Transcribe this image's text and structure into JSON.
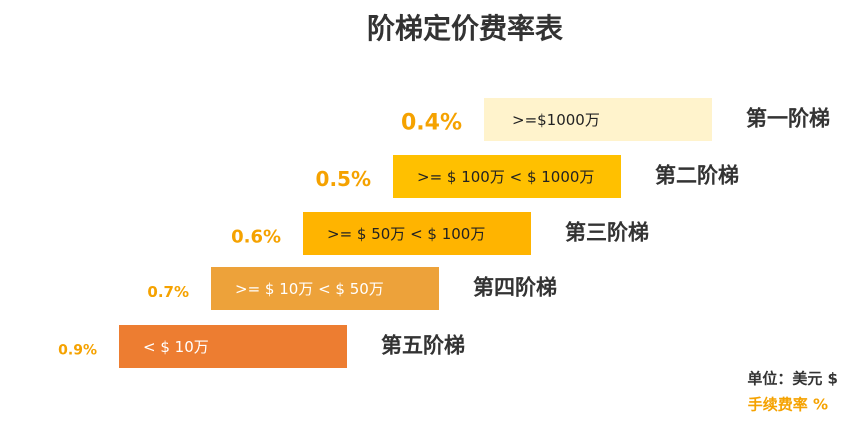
{
  "title": "阶梯定价费率表",
  "tiers": [
    {
      "rate": "0.4%",
      "range": ">=$1000万",
      "name": "第一阶梯"
    },
    {
      "rate": "0.5%",
      "range": ">= $ 100万 < $ 1000万",
      "name": "第二阶梯"
    },
    {
      "rate": "0.6%",
      "range": ">= $ 50万 < $ 100万",
      "name": "第三阶梯"
    },
    {
      "rate": "0.7%",
      "range": ">= $ 10万 < $ 50万",
      "name": "第四阶梯"
    },
    {
      "rate": "0.9%",
      "range": "< $ 10万",
      "name": "第五阶梯"
    }
  ],
  "legend": {
    "unit": "单位：美元 $",
    "rate": "手续费率 %"
  }
}
